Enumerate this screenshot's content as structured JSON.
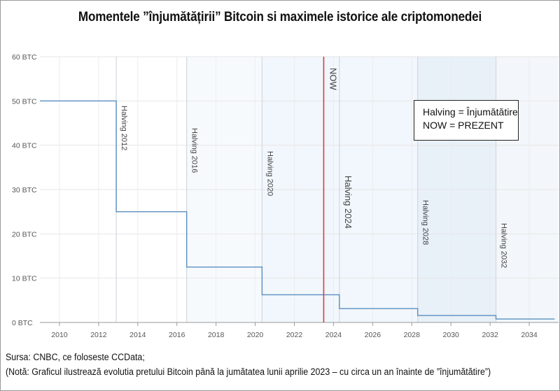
{
  "title": "Momentele ”înjumătățirii” Bitcoin si maximele istorice ale criptomonedei",
  "legend": {
    "line1": "Halving = Înjumătătire",
    "line2": "NOW = PREZENT"
  },
  "source": {
    "line1": "Sursa: CNBC, ce foloseste CCData;",
    "line2": "(Notă: Graficul ilustrează evolutia pretului Bitcoin până la jumătatea lunii aprilie 2023 – cu circa un an înainte de ”înjumătătire”)"
  },
  "chart_data": {
    "type": "line",
    "step": true,
    "xlim": [
      2009,
      2035.5
    ],
    "ylim": [
      0,
      60
    ],
    "x_ticks": [
      2010,
      2012,
      2014,
      2016,
      2018,
      2020,
      2022,
      2024,
      2026,
      2028,
      2030,
      2032,
      2034
    ],
    "y_ticks": [
      {
        "value": 0,
        "label": "0 BTC"
      },
      {
        "value": 10,
        "label": "10 BTC"
      },
      {
        "value": 20,
        "label": "20 BTC"
      },
      {
        "value": 30,
        "label": "30 BTC"
      },
      {
        "value": 40,
        "label": "40 BTC"
      },
      {
        "value": 50,
        "label": "50 BTC"
      },
      {
        "value": 60,
        "label": "60 BTC"
      }
    ],
    "grid": true,
    "series": [
      {
        "color": "#5b8fc0",
        "x": [
          2009.0,
          2012.9,
          2016.5,
          2020.35,
          2024.3,
          2028.3,
          2032.3,
          2035.3
        ],
        "y": [
          50,
          25,
          12.5,
          6.25,
          3.125,
          1.5625,
          0.78,
          0.78
        ]
      }
    ],
    "halvings": [
      {
        "label": "Halving 2012",
        "x": 2012.9
      },
      {
        "label": "Halving 2016",
        "x": 2016.5
      },
      {
        "label": "Halving 2020",
        "x": 2020.35
      },
      {
        "label": "Halving 2024",
        "x": 2024.3
      },
      {
        "label": "Halving 2028",
        "x": 2028.3
      },
      {
        "label": "Halving 2032",
        "x": 2032.3
      }
    ],
    "now": {
      "label": "NOW",
      "x": 2023.5,
      "color": "#e03b3b"
    }
  }
}
